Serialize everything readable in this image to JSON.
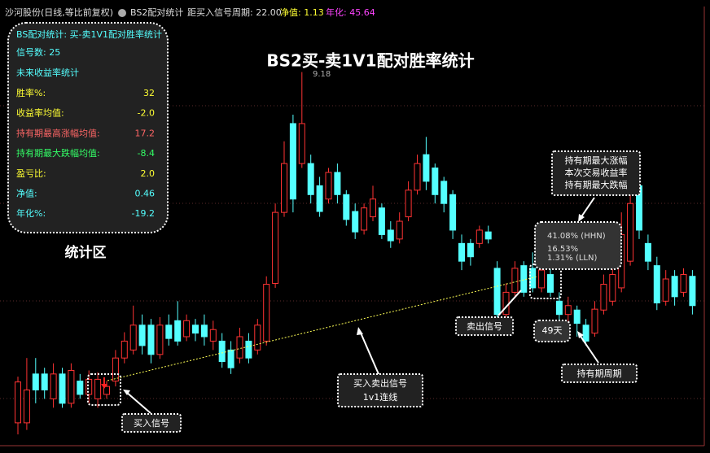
{
  "header": {
    "stock": "沙河股份(日线,等比前复权)",
    "indicator": "BS2配对统计",
    "period": "距买入信号周期: 22.00",
    "nav": "净值: 1.13",
    "annual": "年化: 45.64"
  },
  "stats_panel": {
    "title": "BS配对统计: 买-卖1V1配对胜率统计",
    "signals": "信号数: 25",
    "subtitle": "未来收益率统计",
    "rows": [
      [
        "胜率%:",
        "32"
      ],
      [
        "收益率均值:",
        "-2.0"
      ],
      [
        "持有期最高涨幅均值:",
        "17.2"
      ],
      [
        "持有期最大跌幅均值:",
        "-8.4"
      ],
      [
        "盈亏比:",
        "2.0"
      ],
      [
        "净值:",
        "0.46"
      ],
      [
        "年化%:",
        "-19.2"
      ]
    ],
    "caption": "统计区"
  },
  "annotations": {
    "title": "BS2买-卖1V1配对胜率统计",
    "peak": "9.18",
    "buy": "买入信号",
    "sell": "卖出信号",
    "line_note": [
      "买入卖出信号",
      "1v1连线"
    ],
    "box_note": [
      "持有期最大涨幅",
      "本次交易收益率",
      "持有期最大跌幅"
    ],
    "box_values": [
      "41.08% (HHN)",
      "16.53%",
      "1.31% (LLN)"
    ],
    "days": "49天",
    "period_note": "持有期周期"
  },
  "chart_data": {
    "type": "candlestick",
    "ylim": [
      5.0,
      9.9
    ],
    "up_color": "#ff3333",
    "down_color": "#54ffff",
    "open": [
      5.23,
      5.23,
      5.78,
      5.78,
      5.5,
      5.78,
      5.45,
      5.7,
      5.55,
      5.5,
      5.55,
      5.7,
      5.96,
      6.05,
      6.33,
      6.33,
      6.0,
      6.33,
      6.38,
      6.2,
      6.33,
      6.33,
      6.15,
      6.15,
      6.05,
      5.96,
      6.15,
      6.05,
      6.15,
      6.8,
      7.6,
      8.6,
      8.15,
      8.15,
      7.9,
      7.75,
      8.05,
      7.8,
      7.61,
      7.4,
      7.55,
      7.65,
      7.4,
      7.3,
      7.55,
      7.85,
      8.25,
      8.1,
      7.95,
      7.8,
      7.25,
      7.25,
      7.25,
      7.38,
      6.97,
      6.45,
      6.7,
      7.0,
      6.97,
      6.75,
      6.9,
      6.6,
      6.45,
      6.5,
      6.33,
      6.24,
      6.5,
      6.6,
      6.75,
      7.05,
      7.9,
      7.25,
      7.0,
      6.6,
      6.88,
      6.7,
      6.88
    ],
    "high": [
      5.75,
      5.96,
      5.96,
      5.85,
      5.9,
      5.85,
      5.9,
      5.78,
      5.82,
      5.8,
      5.7,
      6.05,
      6.25,
      6.55,
      6.45,
      6.4,
      6.42,
      6.45,
      6.6,
      6.45,
      6.4,
      6.45,
      6.38,
      6.24,
      6.15,
      6.3,
      6.24,
      6.4,
      6.88,
      7.7,
      8.4,
      8.7,
      9.18,
      8.25,
      8.0,
      8.1,
      8.15,
      7.85,
      7.7,
      7.7,
      7.9,
      7.7,
      7.5,
      7.6,
      7.95,
      8.25,
      8.45,
      8.15,
      8.0,
      7.85,
      7.35,
      7.3,
      7.45,
      7.45,
      7.05,
      6.8,
      7.05,
      7.05,
      7.15,
      7.05,
      7.0,
      6.7,
      6.65,
      6.55,
      6.4,
      6.6,
      6.9,
      7.0,
      7.6,
      7.8,
      7.95,
      7.35,
      7.1,
      6.95,
      6.95,
      6.97,
      6.95
    ],
    "low": [
      5.1,
      5.15,
      5.45,
      5.5,
      5.4,
      5.4,
      5.4,
      5.5,
      5.45,
      5.4,
      5.5,
      5.64,
      5.9,
      6.0,
      6.0,
      5.9,
      5.95,
      6.1,
      6.1,
      6.15,
      6.15,
      6.1,
      6.05,
      5.85,
      5.78,
      5.9,
      5.9,
      6.0,
      6.1,
      6.75,
      7.55,
      7.6,
      8.1,
      7.7,
      7.55,
      7.7,
      7.7,
      7.45,
      7.3,
      7.35,
      7.5,
      7.3,
      7.2,
      7.25,
      7.5,
      7.8,
      7.85,
      7.7,
      7.6,
      7.3,
      6.95,
      7.0,
      7.2,
      7.25,
      6.4,
      6.4,
      6.65,
      6.65,
      6.7,
      6.7,
      6.65,
      6.35,
      6.35,
      6.2,
      6.1,
      6.2,
      6.45,
      6.55,
      6.7,
      7.0,
      7.3,
      6.95,
      6.5,
      6.55,
      6.55,
      6.65,
      6.45
    ],
    "close": [
      5.69,
      5.6,
      5.6,
      5.6,
      5.78,
      5.45,
      5.82,
      5.55,
      5.72,
      5.72,
      5.64,
      5.96,
      6.15,
      6.33,
      6.1,
      6.0,
      6.33,
      6.18,
      6.15,
      6.38,
      6.24,
      6.2,
      6.28,
      5.92,
      5.85,
      6.2,
      5.96,
      6.33,
      6.79,
      7.6,
      8.15,
      7.75,
      8.6,
      7.8,
      7.61,
      8.05,
      7.8,
      7.52,
      7.38,
      7.65,
      7.75,
      7.35,
      7.28,
      7.5,
      7.85,
      8.15,
      7.95,
      7.8,
      7.7,
      7.4,
      7.05,
      7.1,
      7.4,
      7.3,
      6.45,
      6.7,
      6.97,
      6.7,
      6.75,
      6.95,
      6.7,
      6.45,
      6.55,
      6.35,
      6.15,
      6.51,
      6.79,
      6.9,
      7.35,
      7.7,
      7.4,
      7.05,
      6.58,
      6.85,
      6.65,
      6.9,
      6.55
    ]
  }
}
